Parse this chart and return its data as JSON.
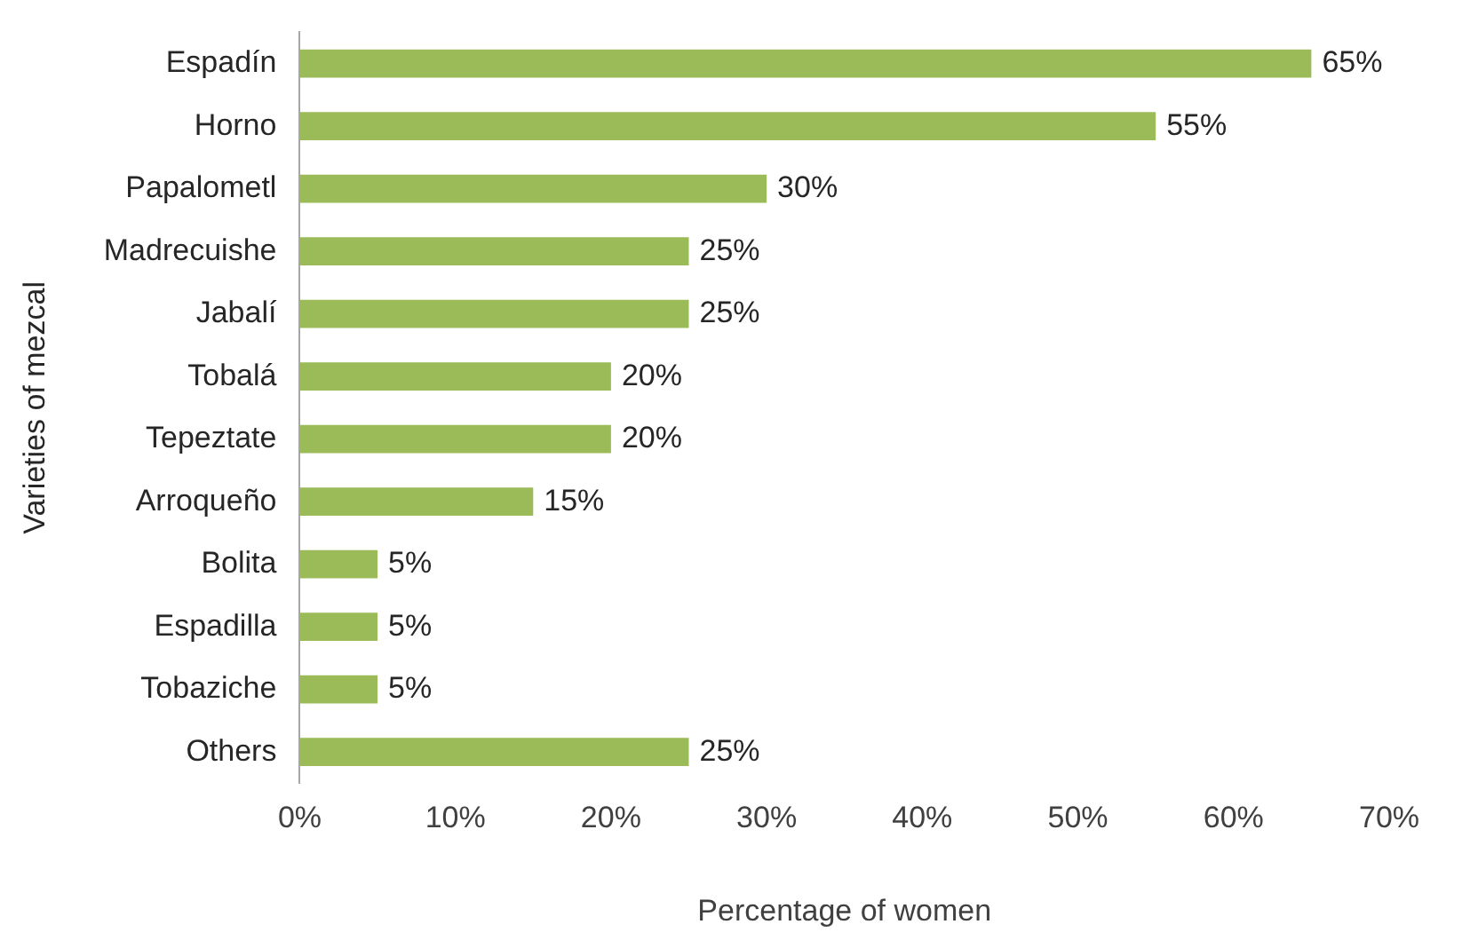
{
  "chart_data": {
    "type": "bar",
    "orientation": "horizontal",
    "xlabel": "Percentage of women",
    "ylabel": "Varieties of mezcal",
    "categories": [
      "Espadín",
      "Horno",
      "Papalometl",
      "Madrecuishe",
      "Jabalí",
      "Tobalá",
      "Tepeztate",
      "Arroqueño",
      "Bolita",
      "Espadilla",
      "Tobaziche",
      "Others"
    ],
    "values": [
      65,
      55,
      30,
      25,
      25,
      20,
      20,
      15,
      5,
      5,
      5,
      25
    ],
    "value_labels": [
      "65%",
      "55%",
      "30%",
      "25%",
      "25%",
      "20%",
      "20%",
      "15%",
      "5%",
      "5%",
      "5%",
      "25%"
    ],
    "color": "#9bbb59",
    "xlim": [
      0,
      70
    ],
    "xticks": [
      {
        "value": 0,
        "label": "0%"
      },
      {
        "value": 10,
        "label": "10%"
      },
      {
        "value": 20,
        "label": "20%"
      },
      {
        "value": 30,
        "label": "30%"
      },
      {
        "value": 40,
        "label": "40%"
      },
      {
        "value": 50,
        "label": "50%"
      },
      {
        "value": 60,
        "label": "60%"
      },
      {
        "value": 70,
        "label": "70%"
      }
    ],
    "grid": false,
    "legend": false
  }
}
